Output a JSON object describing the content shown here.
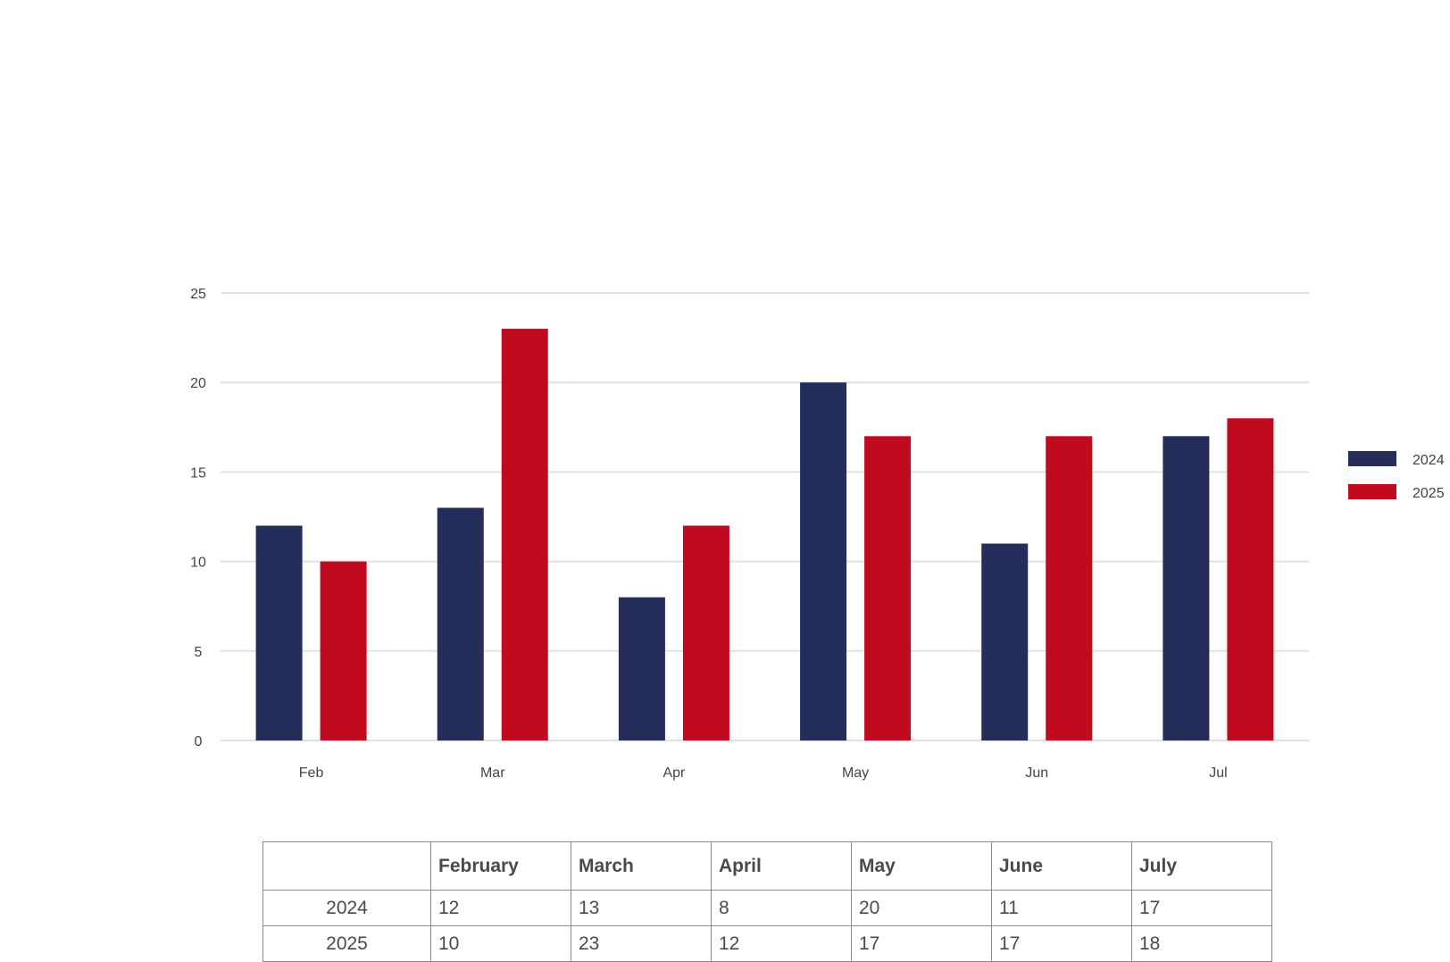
{
  "chart_data": {
    "type": "bar",
    "categories": [
      "Feb",
      "Mar",
      "Apr",
      "May",
      "Jun",
      "Jul"
    ],
    "series": [
      {
        "name": "2024",
        "values": [
          12,
          13,
          8,
          20,
          11,
          17
        ],
        "color": "#252d5a"
      },
      {
        "name": "2025",
        "values": [
          10,
          23,
          12,
          17,
          17,
          18
        ],
        "color": "#c00a1e"
      }
    ],
    "ylim": [
      0,
      25
    ],
    "yticks": [
      0,
      5,
      10,
      15,
      20,
      25
    ],
    "grid": true,
    "legend_position": "right",
    "title": "",
    "xlabel": "",
    "ylabel": ""
  },
  "table": {
    "corner": "",
    "headers": [
      "February",
      "March",
      "April",
      "May",
      "June",
      "July"
    ],
    "rows": [
      {
        "label": "2024",
        "cells": [
          "12",
          "13",
          "8",
          "20",
          "11",
          "17"
        ]
      },
      {
        "label": "2025",
        "cells": [
          "10",
          "23",
          "12",
          "17",
          "17",
          "18"
        ]
      }
    ]
  }
}
